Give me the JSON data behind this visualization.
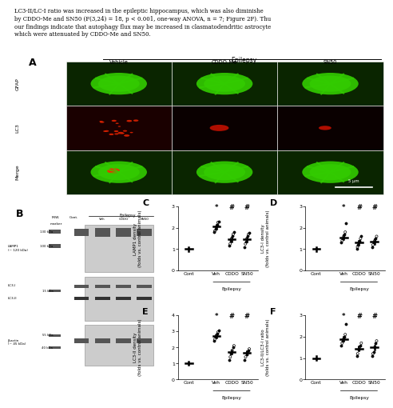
{
  "text_top_lines": [
    "LC3-II/LC-I ratio was increased in the epileptic hippocampus, which was also diminishe",
    "by CDDO-Me and SN50 (F(3,24) = 18, p < 0.001, one-way ANOVA, n = 7; Figure 2F). Thu",
    "our findings indicate that autophagy flux may be increased in clasmatodendritic astrocyte",
    "which were attenuated by CDDO-Me and SN50."
  ],
  "panel_A_col_labels": [
    "Vehicle",
    "CDDO-Me",
    "SN50"
  ],
  "panel_A_row_labels": [
    "GFAP",
    "LC3",
    "Merge"
  ],
  "panel_A_scalebar": "5 μm",
  "panel_C_label": "C",
  "panel_C_ylabel": "LAMP1 density\n(folds vs. control animals)",
  "panel_C_ylim": [
    0,
    3
  ],
  "panel_C_yticks": [
    0,
    1,
    2,
    3
  ],
  "panel_C_groups": [
    "Cont",
    "Veh",
    "CDDO",
    "SN50"
  ],
  "panel_C_means": [
    1.0,
    2.05,
    1.45,
    1.45
  ],
  "panel_C_scatter_Cont": [
    1.0
  ],
  "panel_C_scatter_Veh": [
    1.8,
    1.85,
    1.95,
    2.05,
    2.15,
    2.25,
    2.3
  ],
  "panel_C_scatter_CDDO": [
    1.15,
    1.25,
    1.4,
    1.5,
    1.6,
    1.7,
    1.8
  ],
  "panel_C_scatter_SN50": [
    1.1,
    1.25,
    1.35,
    1.5,
    1.6,
    1.7,
    1.75
  ],
  "panel_C_stars_Veh": "*",
  "panel_C_stars_CDDO": "#",
  "panel_C_stars_SN50": "#",
  "panel_D_label": "D",
  "panel_D_ylabel": "LC3-I density\n(folds vs. control animals)",
  "panel_D_ylim": [
    0,
    3
  ],
  "panel_D_yticks": [
    0,
    1,
    2,
    3
  ],
  "panel_D_groups": [
    "Cont",
    "Veh",
    "CDDO",
    "SN50"
  ],
  "panel_D_means": [
    1.0,
    1.55,
    1.3,
    1.35
  ],
  "panel_D_scatter_Cont": [
    1.0
  ],
  "panel_D_scatter_Veh": [
    1.3,
    1.4,
    1.5,
    1.6,
    1.7,
    1.8,
    2.2
  ],
  "panel_D_scatter_CDDO": [
    1.0,
    1.1,
    1.2,
    1.3,
    1.4,
    1.5,
    1.6
  ],
  "panel_D_scatter_SN50": [
    1.1,
    1.2,
    1.3,
    1.4,
    1.5,
    1.6
  ],
  "panel_D_stars_Veh": "*",
  "panel_D_stars_CDDO": "#",
  "panel_D_stars_SN50": "#",
  "panel_E_label": "E",
  "panel_E_ylabel": "LC3-II density\n(folds vs. control animals)",
  "panel_E_ylim": [
    0,
    4
  ],
  "panel_E_yticks": [
    0,
    1,
    2,
    3,
    4
  ],
  "panel_E_groups": [
    "Cont",
    "Veh",
    "CDDO",
    "SN50"
  ],
  "panel_E_means": [
    1.0,
    2.7,
    1.7,
    1.65
  ],
  "panel_E_scatter_Cont": [
    1.0
  ],
  "panel_E_scatter_Veh": [
    2.4,
    2.5,
    2.65,
    2.75,
    2.85,
    2.95,
    3.05
  ],
  "panel_E_scatter_CDDO": [
    1.2,
    1.4,
    1.6,
    1.8,
    2.0,
    2.1
  ],
  "panel_E_scatter_SN50": [
    1.2,
    1.4,
    1.55,
    1.7,
    1.8,
    1.9
  ],
  "panel_E_stars_Veh": "*",
  "panel_E_stars_CDDO": "#",
  "panel_E_stars_SN50": "#",
  "panel_F_label": "F",
  "panel_F_ylabel": "LC3-II/LC3-I ratio\n(folds vs. control animals)",
  "panel_F_ylim": [
    0,
    3
  ],
  "panel_F_yticks": [
    0,
    1,
    2,
    3
  ],
  "panel_F_groups": [
    "Cont",
    "Veh",
    "CDDO",
    "SN50"
  ],
  "panel_F_means": [
    1.0,
    1.9,
    1.45,
    1.5
  ],
  "panel_F_scatter_Cont": [
    1.0
  ],
  "panel_F_scatter_Veh": [
    1.6,
    1.7,
    1.8,
    1.9,
    2.0,
    2.1,
    2.6
  ],
  "panel_F_scatter_CDDO": [
    1.1,
    1.2,
    1.4,
    1.5,
    1.6,
    1.7
  ],
  "panel_F_scatter_SN50": [
    1.1,
    1.2,
    1.3,
    1.5,
    1.7,
    1.8
  ],
  "panel_F_stars_Veh": "*",
  "panel_F_stars_CDDO": "#",
  "panel_F_stars_SN50": "#"
}
